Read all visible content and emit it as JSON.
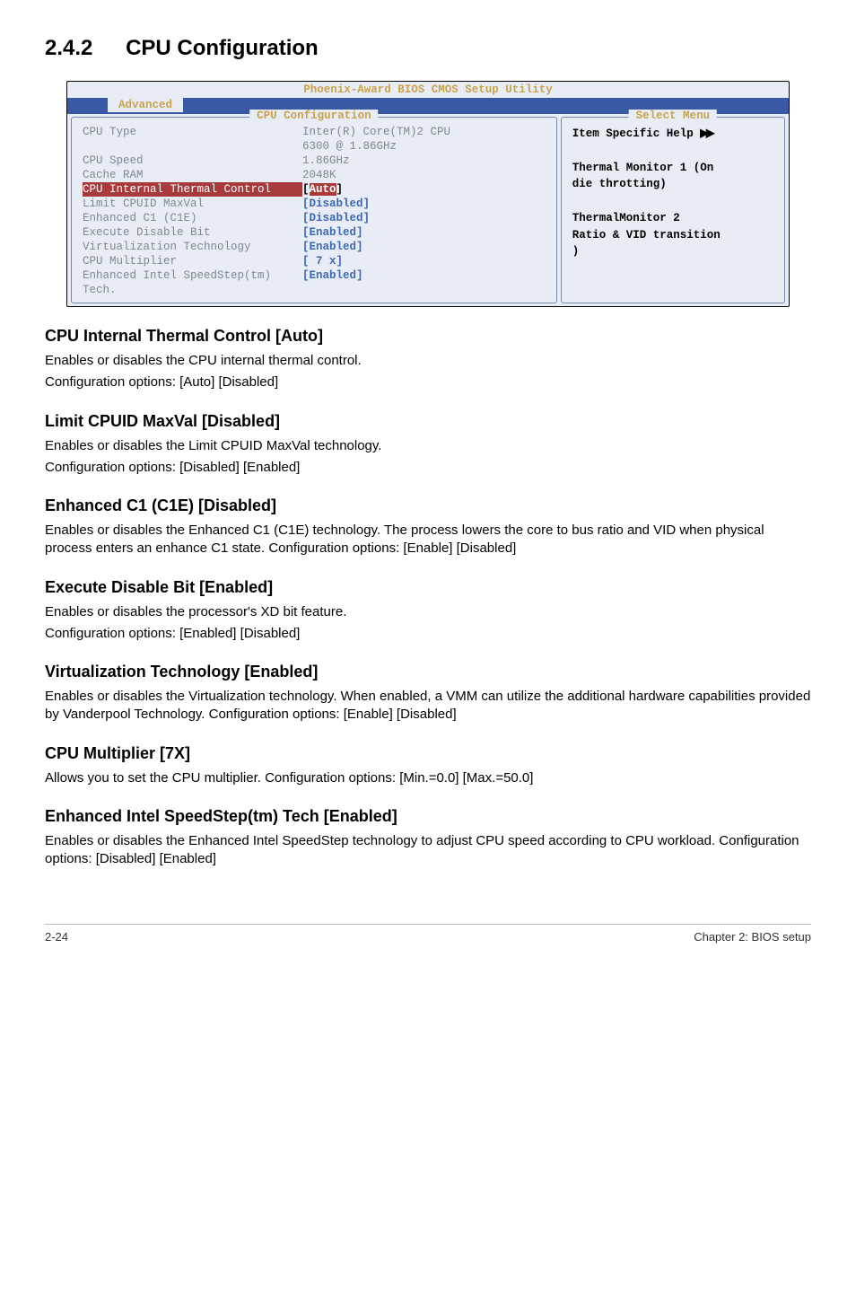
{
  "section": {
    "number": "2.4.2",
    "title": "CPU Configuration"
  },
  "bios": {
    "utility_title": "Phoenix-Award BIOS CMOS Setup Utility",
    "tab": "Advanced",
    "left_panel_title": "CPU Configuration",
    "right_panel_title": "Select Menu",
    "rows": [
      {
        "label": "CPU Type",
        "value": "Inter(R) Core(TM)2 CPU",
        "dim": true
      },
      {
        "label": "",
        "value": "6300 @ 1.86GHz",
        "dim": true
      },
      {
        "label": "CPU Speed",
        "value": "1.86GHz",
        "dim": true
      },
      {
        "label": "Cache RAM",
        "value": "2048K",
        "dim": true
      },
      {
        "label": "CPU Internal Thermal Control",
        "value": "[Auto]",
        "highlight": true
      },
      {
        "label": "Limit CPUID MaxVal",
        "value": "[Disabled]"
      },
      {
        "label": "Enhanced C1 (C1E)",
        "value": "[Disabled]"
      },
      {
        "label": "Execute Disable Bit",
        "value": "[Enabled]"
      },
      {
        "label": "Virtualization Technology",
        "value": "[Enabled]"
      },
      {
        "label": "CPU Multiplier",
        "value": "[ 7 x]"
      },
      {
        "label": "Enhanced Intel SpeedStep(tm) Tech.",
        "value": "[Enabled]"
      }
    ],
    "help": {
      "title": "Item Specific Help",
      "lines": [
        "",
        "Thermal Monitor 1 (On",
        "die throtting)",
        "",
        "ThermalMonitor 2",
        "Ratio & VID transition",
        ")"
      ]
    }
  },
  "subs": [
    {
      "heading": "CPU Internal Thermal Control [Auto]",
      "paras": [
        "Enables or disables the CPU internal thermal control.",
        "Configuration options: [Auto] [Disabled]"
      ]
    },
    {
      "heading": "Limit CPUID MaxVal [Disabled]",
      "paras": [
        "Enables or disables the Limit CPUID MaxVal technology.",
        "Configuration options: [Disabled] [Enabled]"
      ]
    },
    {
      "heading": "Enhanced C1 (C1E) [Disabled]",
      "paras": [
        "Enables or disables the Enhanced C1 (C1E) technology. The process lowers the core to bus ratio and VID when physical process enters an enhance C1 state. Configuration options: [Enable] [Disabled]"
      ]
    },
    {
      "heading": "Execute Disable Bit [Enabled]",
      "paras": [
        "Enables or disables the processor's XD bit feature.",
        "Configuration options: [Enabled] [Disabled]"
      ]
    },
    {
      "heading": "Virtualization Technology [Enabled]",
      "paras": [
        "Enables or disables the Virtualization technology. When enabled, a VMM can utilize the additional hardware capabilities provided by Vanderpool Technology. Configuration options: [Enable] [Disabled]"
      ]
    },
    {
      "heading": "CPU Multiplier [7X]",
      "paras": [
        "Allows you to set the CPU multiplier. Configuration options: [Min.=0.0] [Max.=50.0]"
      ]
    },
    {
      "heading": "Enhanced Intel SpeedStep(tm) Tech [Enabled]",
      "paras": [
        "Enables or disables the Enhanced Intel SpeedStep technology to adjust CPU speed according to CPU workload. Configuration options: [Disabled] [Enabled]"
      ]
    }
  ],
  "footer": {
    "left": "2-24",
    "right": "Chapter 2: BIOS setup"
  }
}
